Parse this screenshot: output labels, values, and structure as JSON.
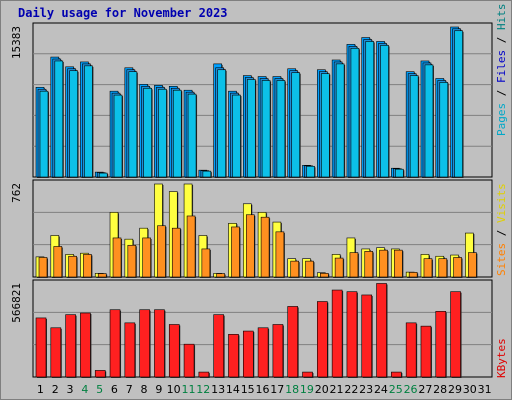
{
  "title": "Daily usage for November 2023",
  "colors": {
    "hits": "#00a0ff",
    "files": "#1e8fd8",
    "pages": "#0cc0e8",
    "visits": "#ffff40",
    "sites": "#ff9020",
    "kbytes": "#ff2020",
    "pages_label": "#00a8c8",
    "files_label": "#0000c8",
    "hits_label": "#008080",
    "visits_label": "#e0d000",
    "sites_label": "#ff8000",
    "kbytes_label": "#e00000",
    "weekend_day": "#008040",
    "weekday_day": "#000000"
  },
  "chart_data": [
    {
      "type": "bar",
      "panel": "hits-files-pages",
      "ymax_label": "15383",
      "ylim": [
        0,
        15383
      ],
      "legend": [
        "Pages",
        "Files",
        "Hits"
      ],
      "x": [
        "1",
        "2",
        "3",
        "4",
        "5",
        "6",
        "7",
        "8",
        "9",
        "10",
        "11",
        "12",
        "13",
        "14",
        "15",
        "16",
        "17",
        "18",
        "19",
        "20",
        "21",
        "22",
        "23",
        "24",
        "25",
        "26",
        "27",
        "28",
        "29",
        "30",
        "31"
      ],
      "weekend_days": [
        4,
        5,
        11,
        12,
        18,
        19,
        25,
        26
      ],
      "series": [
        {
          "name": "Hits",
          "values": [
            9200,
            12300,
            11300,
            11800,
            500,
            8800,
            11200,
            9500,
            9400,
            9300,
            8900,
            700,
            11600,
            8800,
            10400,
            10300,
            10300,
            11100,
            1200,
            11000,
            12000,
            13600,
            14300,
            13900,
            900,
            10800,
            11900,
            10100,
            15383,
            0,
            0
          ]
        },
        {
          "name": "Files",
          "values": [
            9000,
            12100,
            11100,
            11600,
            450,
            8600,
            11000,
            9300,
            9200,
            9100,
            8700,
            650,
            11200,
            8600,
            10200,
            10100,
            10100,
            10900,
            1150,
            10800,
            11800,
            13400,
            14100,
            13700,
            850,
            10600,
            11700,
            9900,
            15200,
            0,
            0
          ]
        },
        {
          "name": "Pages",
          "values": [
            8800,
            11900,
            10900,
            11400,
            400,
            8400,
            10800,
            9100,
            9000,
            8900,
            8500,
            600,
            11000,
            8400,
            10000,
            9900,
            9900,
            10700,
            1100,
            10600,
            11600,
            13200,
            13900,
            13500,
            800,
            10400,
            11500,
            9700,
            15000,
            0,
            0
          ]
        }
      ]
    },
    {
      "type": "bar",
      "panel": "visits-sites",
      "ymax_label": "762",
      "ylim": [
        0,
        762
      ],
      "legend": [
        "Sites",
        "Visits"
      ],
      "series": [
        {
          "name": "Visits",
          "values": [
            165,
            340,
            185,
            195,
            30,
            530,
            310,
            400,
            762,
            700,
            762,
            340,
            30,
            440,
            600,
            530,
            450,
            150,
            150,
            35,
            185,
            320,
            230,
            240,
            230,
            40,
            185,
            170,
            180,
            360,
            0
          ]
        },
        {
          "name": "Sites",
          "values": [
            160,
            250,
            170,
            185,
            28,
            320,
            260,
            320,
            420,
            400,
            500,
            230,
            28,
            410,
            510,
            490,
            370,
            130,
            130,
            30,
            155,
            200,
            210,
            220,
            220,
            38,
            150,
            150,
            160,
            200,
            0
          ]
        }
      ]
    },
    {
      "type": "bar",
      "panel": "kbytes",
      "ymax_label": "566821",
      "ylim": [
        0,
        566821
      ],
      "legend": [
        "KBytes"
      ],
      "series": [
        {
          "name": "KBytes",
          "values": [
            360000,
            300000,
            380000,
            390000,
            40000,
            410000,
            330000,
            410000,
            410000,
            320000,
            200000,
            30000,
            380000,
            260000,
            280000,
            300000,
            320000,
            430000,
            30000,
            460000,
            530000,
            520000,
            500000,
            570000,
            30000,
            330000,
            310000,
            400000,
            520000,
            0,
            0
          ]
        }
      ]
    }
  ]
}
